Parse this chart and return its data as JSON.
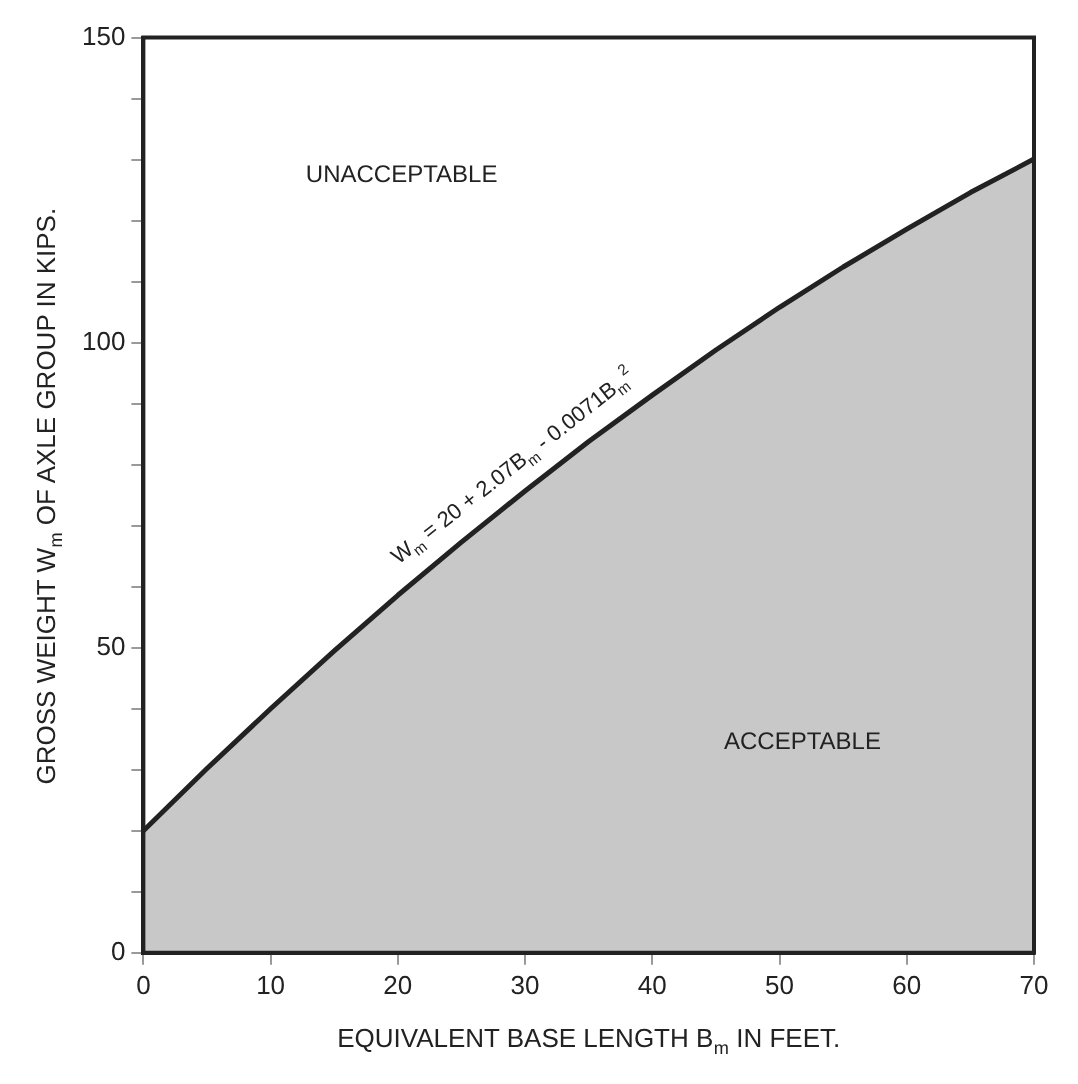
{
  "chart_data": {
    "type": "area",
    "xlabel": "EQUIVALENT BASE LENGTH B$_{m}$ IN FEET.",
    "ylabel": "GROSS WEIGHT W$_{m}$ OF AXLE GROUP IN KIPS.",
    "x": [
      0,
      5,
      10,
      15,
      20,
      25,
      30,
      35,
      40,
      45,
      50,
      55,
      60,
      65,
      70
    ],
    "series": [
      {
        "color": "#222222",
        "values": [
          20,
          30.2,
          40,
          49.5,
          58.6,
          67.3,
          75.7,
          83.8,
          91.4,
          98.8,
          105.8,
          112.4,
          118.6,
          124.6,
          130.1
        ]
      }
    ],
    "xlim": [
      0,
      70
    ],
    "xticks": [
      0,
      10,
      20,
      30,
      40,
      50,
      60,
      70
    ],
    "ylim": [
      0,
      150
    ],
    "yticks": [
      0,
      {
        "value": 10,
        "label": null
      },
      {
        "value": 20,
        "label": null
      },
      {
        "value": 30,
        "label": null
      },
      {
        "value": 40,
        "label": null
      },
      50,
      {
        "value": 60,
        "label": null
      },
      {
        "value": 70,
        "label": null
      },
      {
        "value": 80,
        "label": null
      },
      {
        "value": 90,
        "label": null
      },
      100,
      {
        "value": 110,
        "label": null
      },
      {
        "value": 120,
        "label": null
      },
      {
        "value": 130,
        "label": null
      },
      {
        "value": 140,
        "label": null
      },
      150
    ],
    "grid": false,
    "annotations": [
      "UNACCEPTABLE",
      "ACCEPTABLE",
      "W$_{m}$ = 20 + 2.07B$_{m}$ - 0.0071B$_{m}$$^{2}$"
    ]
  }
}
